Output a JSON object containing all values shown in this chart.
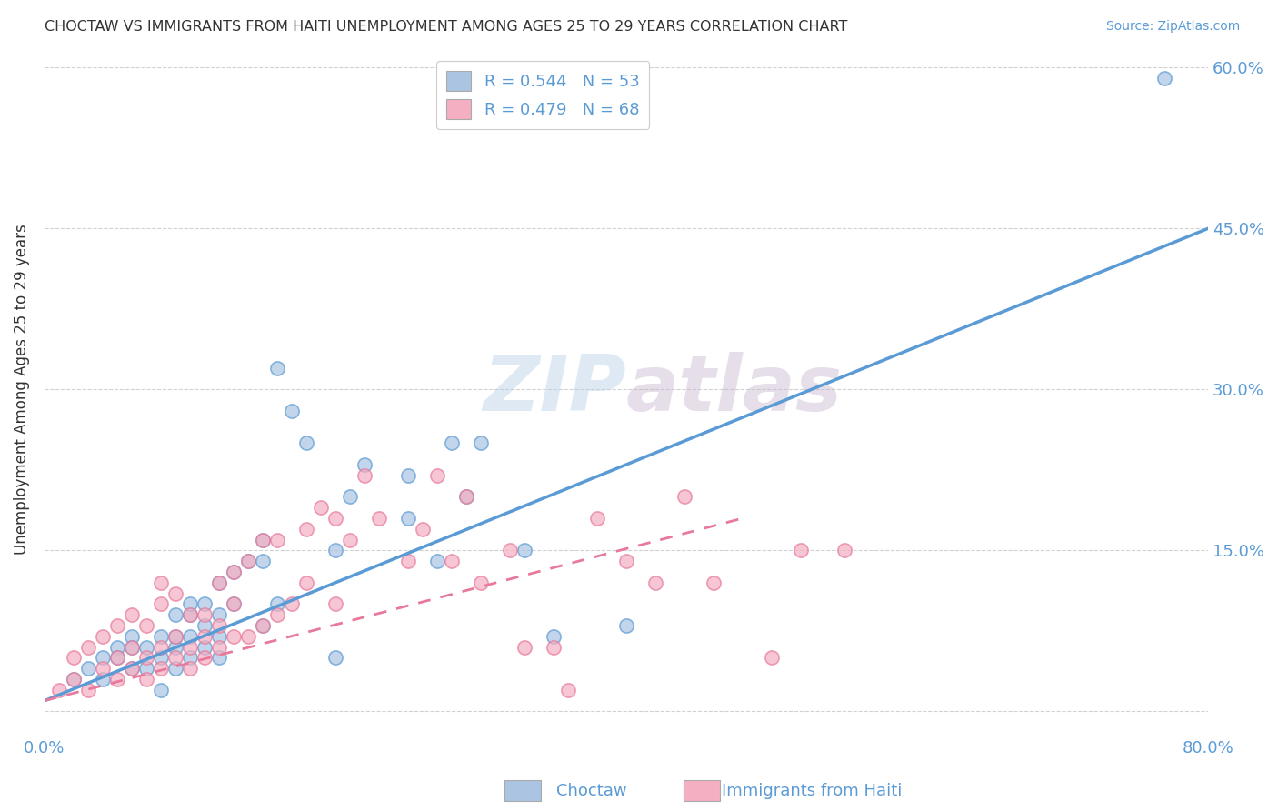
{
  "title": "CHOCTAW VS IMMIGRANTS FROM HAITI UNEMPLOYMENT AMONG AGES 25 TO 29 YEARS CORRELATION CHART",
  "source": "Source: ZipAtlas.com",
  "ylabel": "Unemployment Among Ages 25 to 29 years",
  "xmin": 0.0,
  "xmax": 0.8,
  "ymin": -0.02,
  "ymax": 0.62,
  "x_ticks": [
    0.0,
    0.1,
    0.2,
    0.3,
    0.4,
    0.5,
    0.6,
    0.7,
    0.8
  ],
  "y_ticks_right": [
    0.0,
    0.15,
    0.3,
    0.45,
    0.6
  ],
  "y_tick_labels_right": [
    "",
    "15.0%",
    "30.0%",
    "45.0%",
    "60.0%"
  ],
  "choctaw_color": "#aac4e2",
  "haiti_color": "#f5afc2",
  "choctaw_line_color": "#5b9bd5",
  "haiti_line_color": "#e8799a",
  "choctaw_scatter_x": [
    0.02,
    0.03,
    0.04,
    0.04,
    0.05,
    0.05,
    0.06,
    0.06,
    0.06,
    0.07,
    0.07,
    0.08,
    0.08,
    0.08,
    0.09,
    0.09,
    0.09,
    0.09,
    0.1,
    0.1,
    0.1,
    0.1,
    0.11,
    0.11,
    0.11,
    0.12,
    0.12,
    0.12,
    0.12,
    0.13,
    0.13,
    0.14,
    0.15,
    0.15,
    0.15,
    0.16,
    0.16,
    0.17,
    0.18,
    0.2,
    0.2,
    0.21,
    0.22,
    0.25,
    0.25,
    0.27,
    0.28,
    0.29,
    0.3,
    0.33,
    0.35,
    0.4,
    0.77
  ],
  "choctaw_scatter_y": [
    0.03,
    0.04,
    0.05,
    0.03,
    0.06,
    0.05,
    0.07,
    0.04,
    0.06,
    0.04,
    0.06,
    0.02,
    0.05,
    0.07,
    0.04,
    0.06,
    0.07,
    0.09,
    0.05,
    0.07,
    0.09,
    0.1,
    0.06,
    0.08,
    0.1,
    0.05,
    0.07,
    0.09,
    0.12,
    0.1,
    0.13,
    0.14,
    0.08,
    0.14,
    0.16,
    0.1,
    0.32,
    0.28,
    0.25,
    0.05,
    0.15,
    0.2,
    0.23,
    0.18,
    0.22,
    0.14,
    0.25,
    0.2,
    0.25,
    0.15,
    0.07,
    0.08,
    0.59
  ],
  "haiti_scatter_x": [
    0.01,
    0.02,
    0.02,
    0.03,
    0.03,
    0.04,
    0.04,
    0.05,
    0.05,
    0.05,
    0.06,
    0.06,
    0.06,
    0.07,
    0.07,
    0.07,
    0.08,
    0.08,
    0.08,
    0.08,
    0.09,
    0.09,
    0.09,
    0.1,
    0.1,
    0.1,
    0.11,
    0.11,
    0.11,
    0.12,
    0.12,
    0.12,
    0.13,
    0.13,
    0.13,
    0.14,
    0.14,
    0.15,
    0.15,
    0.16,
    0.16,
    0.17,
    0.18,
    0.18,
    0.19,
    0.2,
    0.2,
    0.21,
    0.22,
    0.23,
    0.25,
    0.26,
    0.27,
    0.28,
    0.29,
    0.3,
    0.32,
    0.33,
    0.35,
    0.36,
    0.38,
    0.4,
    0.42,
    0.44,
    0.46,
    0.5,
    0.52,
    0.55
  ],
  "haiti_scatter_y": [
    0.02,
    0.03,
    0.05,
    0.02,
    0.06,
    0.04,
    0.07,
    0.03,
    0.05,
    0.08,
    0.04,
    0.06,
    0.09,
    0.03,
    0.05,
    0.08,
    0.04,
    0.06,
    0.1,
    0.12,
    0.05,
    0.07,
    0.11,
    0.04,
    0.06,
    0.09,
    0.05,
    0.07,
    0.09,
    0.06,
    0.08,
    0.12,
    0.07,
    0.1,
    0.13,
    0.07,
    0.14,
    0.08,
    0.16,
    0.09,
    0.16,
    0.1,
    0.17,
    0.12,
    0.19,
    0.1,
    0.18,
    0.16,
    0.22,
    0.18,
    0.14,
    0.17,
    0.22,
    0.14,
    0.2,
    0.12,
    0.15,
    0.06,
    0.06,
    0.02,
    0.18,
    0.14,
    0.12,
    0.2,
    0.12,
    0.05,
    0.15,
    0.15
  ],
  "choctaw_line_x": [
    0.0,
    0.8
  ],
  "choctaw_line_y": [
    0.01,
    0.45
  ],
  "haiti_line_x": [
    0.0,
    0.48
  ],
  "haiti_line_y": [
    0.01,
    0.18
  ],
  "background_color": "#ffffff",
  "grid_color": "#cccccc"
}
